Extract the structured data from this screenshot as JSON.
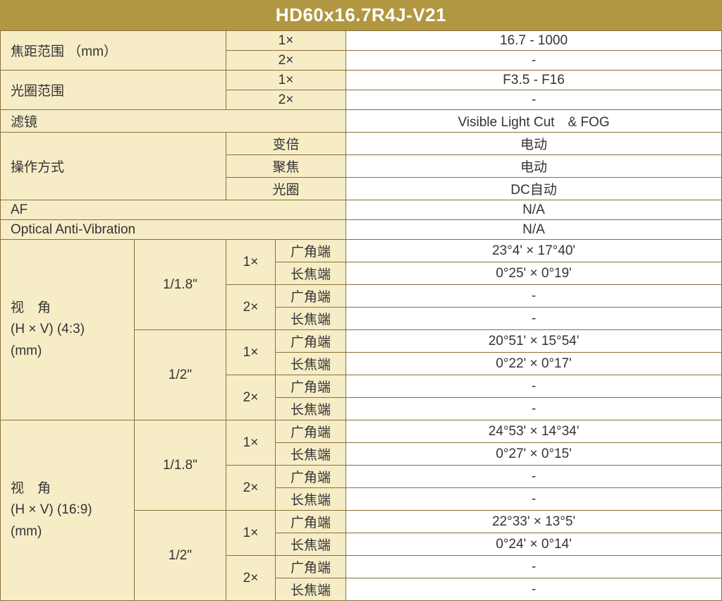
{
  "header": {
    "title": "HD60x16.7R4J-V21"
  },
  "labels": {
    "focal_range": "焦距范围 （mm）",
    "aperture_range": "光圈范围",
    "filter": "滤镜",
    "operation": "操作方式",
    "op_zoom": "变倍",
    "op_focus": "聚焦",
    "op_iris": "光圈",
    "af": "AF",
    "oav": "Optical Anti-Vibration",
    "angle_43": "视　角\n(H × V) (4:3)\n(mm)",
    "angle_169": "视　角\n(H × V) (16:9)\n(mm)",
    "sensor_118": "1/1.8\"",
    "sensor_12": "1/2\"",
    "mag_1x": "1×",
    "mag_2x": "2×",
    "wide": "广角端",
    "tele": "长焦端"
  },
  "values": {
    "focal_1x": "16.7 - 1000",
    "focal_2x": "-",
    "aperture_1x": "F3.5 - F16",
    "aperture_2x": "-",
    "filter": "Visible Light Cut　& FOG",
    "op_zoom": "电动",
    "op_focus": "电动",
    "op_iris": "DC自动",
    "af": "N/A",
    "oav": "N/A",
    "a43_118_1x_w": "23°4' × 17°40'",
    "a43_118_1x_t": "0°25' × 0°19'",
    "a43_118_2x_w": "-",
    "a43_118_2x_t": "-",
    "a43_12_1x_w": "20°51' × 15°54'",
    "a43_12_1x_t": "0°22' × 0°17'",
    "a43_12_2x_w": "-",
    "a43_12_2x_t": "-",
    "a169_118_1x_w": "24°53' × 14°34'",
    "a169_118_1x_t": "0°27' × 0°15'",
    "a169_118_2x_w": "-",
    "a169_118_2x_t": "-",
    "a169_12_1x_w": "22°33' × 13°5'",
    "a169_12_1x_t": "0°24' × 0°14'",
    "a169_12_2x_w": "-",
    "a169_12_2x_t": "-"
  },
  "colors": {
    "header_bg": "#b29742",
    "header_text": "#ffffff",
    "label_bg": "#f6edc7",
    "value_bg": "#ffffff",
    "border": "#8a6f3a",
    "text": "#333333"
  },
  "typography": {
    "header_fontsize": 26,
    "header_weight": "bold",
    "cell_fontsize": 19
  },
  "table_type": "spec-table"
}
